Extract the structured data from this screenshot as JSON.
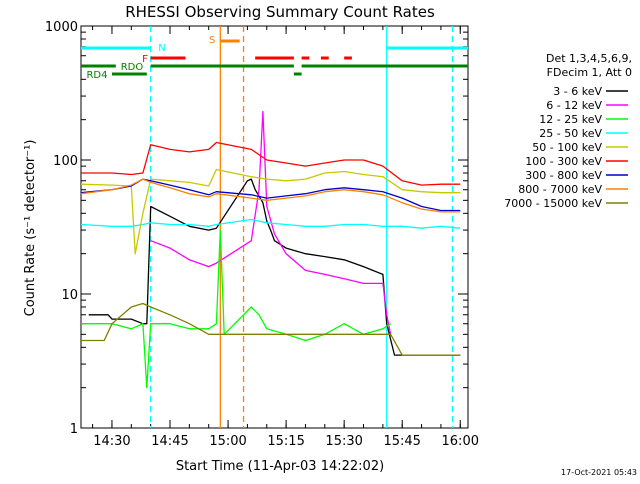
{
  "chart_data": {
    "type": "line",
    "title": "RHESSI Observing Summary Count Rates",
    "xlabel": "Start Time (11-Apr-03 14:22:02)",
    "ylabel": "Count Rate (s⁻¹ detector⁻¹)",
    "y_scale": "log",
    "ylim": [
      1,
      1000
    ],
    "xlim": [
      "14:22",
      "16:02"
    ],
    "x_ticks": [
      "14:30",
      "14:45",
      "15:00",
      "15:15",
      "15:30",
      "15:45",
      "16:00"
    ],
    "y_ticks": [
      "1",
      "10",
      "100",
      "1000"
    ],
    "grid": false,
    "legend_position": "right",
    "legend_header": [
      "Det 1,3,4,5,6,9,",
      "FDecim 1, Att 0"
    ],
    "footer_date": "17-Oct-2021 05:43",
    "series": [
      {
        "name": "3 - 6 keV",
        "color": "#000000",
        "x": [
          "14:24",
          "14:29",
          "14:30",
          "14:35",
          "14:38",
          "14:39",
          "14:40",
          "14:45",
          "14:50",
          "14:55",
          "14:57",
          "15:05",
          "15:06",
          "15:07",
          "15:09",
          "15:10",
          "15:11",
          "15:12",
          "15:15",
          "15:20",
          "15:25",
          "15:30",
          "15:35",
          "15:40",
          "15:41",
          "15:43",
          "15:45",
          "15:50",
          "15:55",
          "16:00"
        ],
        "y": [
          7,
          7,
          6.5,
          6.5,
          6,
          6,
          45,
          38,
          32,
          30,
          31,
          70,
          72,
          60,
          48,
          35,
          30,
          25,
          22,
          20,
          19,
          18,
          16,
          14,
          6,
          3.5,
          3.5,
          3.5,
          3.5,
          3.5
        ]
      },
      {
        "name": "6 - 12 keV",
        "color": "#ff00ff",
        "x": [
          "14:40",
          "14:45",
          "14:50",
          "14:55",
          "14:57",
          "15:06",
          "15:08",
          "15:09",
          "15:10",
          "15:12",
          "15:15",
          "15:20",
          "15:25",
          "15:30",
          "15:35",
          "15:40",
          "15:41",
          "15:42"
        ],
        "y": [
          25,
          22,
          18,
          16,
          17,
          25,
          60,
          230,
          45,
          28,
          20,
          15,
          14,
          13,
          12,
          12,
          7,
          5
        ]
      },
      {
        "name": "12 - 25 keV",
        "color": "#00ff00",
        "x": [
          "14:22",
          "14:30",
          "14:35",
          "14:38",
          "14:39",
          "14:40",
          "14:45",
          "14:50",
          "14:55",
          "14:57",
          "14:58",
          "14:59",
          "15:06",
          "15:08",
          "15:10",
          "15:15",
          "15:20",
          "15:25",
          "15:30",
          "15:35",
          "15:40",
          "15:42"
        ],
        "y": [
          6,
          6,
          5.5,
          6,
          2,
          6,
          6,
          5.5,
          5.5,
          6,
          30,
          5,
          8,
          7,
          5.5,
          5,
          4.5,
          5,
          6,
          5,
          5.5,
          6
        ]
      },
      {
        "name": "25 - 50 keV",
        "color": "#00ffff",
        "x": [
          "14:22",
          "14:30",
          "14:35",
          "14:38",
          "14:40",
          "14:45",
          "14:50",
          "14:55",
          "14:57",
          "15:06",
          "15:10",
          "15:15",
          "15:20",
          "15:25",
          "15:30",
          "15:35",
          "15:40",
          "15:45",
          "15:50",
          "15:55",
          "16:00"
        ],
        "y": [
          33,
          32,
          32,
          33,
          34,
          33,
          33,
          32,
          33,
          36,
          34,
          33,
          32,
          32,
          33,
          33,
          32,
          32,
          31,
          32,
          31
        ]
      },
      {
        "name": "50 - 100 keV",
        "color": "#c8c800",
        "x": [
          "14:22",
          "14:30",
          "14:35",
          "14:36",
          "14:38",
          "14:40",
          "14:45",
          "14:50",
          "14:55",
          "14:57",
          "15:06",
          "15:10",
          "15:15",
          "15:20",
          "15:25",
          "15:30",
          "15:35",
          "15:40",
          "15:45",
          "15:50",
          "15:55",
          "16:00"
        ],
        "y": [
          66,
          65,
          64,
          20,
          40,
          72,
          70,
          68,
          64,
          85,
          75,
          72,
          70,
          72,
          80,
          82,
          78,
          75,
          60,
          58,
          57,
          57
        ]
      },
      {
        "name": "100 - 300 keV",
        "color": "#ff0000",
        "x": [
          "14:22",
          "14:30",
          "14:35",
          "14:38",
          "14:40",
          "14:45",
          "14:50",
          "14:55",
          "14:57",
          "15:06",
          "15:10",
          "15:15",
          "15:20",
          "15:25",
          "15:30",
          "15:35",
          "15:40",
          "15:45",
          "15:50",
          "15:55",
          "16:00"
        ],
        "y": [
          80,
          80,
          78,
          80,
          130,
          120,
          115,
          120,
          135,
          120,
          100,
          95,
          90,
          95,
          100,
          100,
          90,
          70,
          65,
          66,
          66
        ]
      },
      {
        "name": "300 - 800 keV",
        "color": "#0000cc",
        "x": [
          "14:22",
          "14:30",
          "14:35",
          "14:38",
          "14:40",
          "14:45",
          "14:50",
          "14:55",
          "14:57",
          "15:06",
          "15:10",
          "15:15",
          "15:20",
          "15:25",
          "15:30",
          "15:35",
          "15:40",
          "15:45",
          "15:50",
          "15:55",
          "16:00"
        ],
        "y": [
          57,
          60,
          64,
          72,
          70,
          65,
          60,
          55,
          58,
          55,
          52,
          54,
          56,
          60,
          62,
          60,
          58,
          52,
          45,
          42,
          42
        ]
      },
      {
        "name": "800 - 7000 keV",
        "color": "#ff8000",
        "x": [
          "14:22",
          "14:30",
          "14:35",
          "14:38",
          "14:40",
          "14:45",
          "14:50",
          "14:55",
          "14:57",
          "15:06",
          "15:10",
          "15:15",
          "15:20",
          "15:25",
          "15:30",
          "15:35",
          "15:40",
          "15:45",
          "15:50",
          "15:55",
          "16:00"
        ],
        "y": [
          56,
          60,
          65,
          72,
          68,
          62,
          56,
          53,
          56,
          52,
          50,
          52,
          54,
          58,
          60,
          58,
          55,
          48,
          43,
          41,
          41
        ]
      },
      {
        "name": "7000 - 15000 keV",
        "color": "#808000",
        "x": [
          "14:22",
          "14:28",
          "14:30",
          "14:35",
          "14:38",
          "14:40",
          "14:45",
          "14:50",
          "14:55",
          "14:57",
          "15:06",
          "15:10",
          "15:15",
          "15:20",
          "15:25",
          "15:30",
          "15:35",
          "15:40",
          "15:42",
          "15:45",
          "15:50",
          "15:55",
          "16:00"
        ],
        "y": [
          4.5,
          4.5,
          6,
          8,
          8.5,
          8,
          7,
          6,
          5,
          5,
          5,
          5,
          5,
          5,
          5,
          5,
          5,
          5,
          5,
          3.5,
          3.5,
          3.5,
          3.5
        ]
      }
    ],
    "flag_lines": [
      {
        "label": "N",
        "color": "#00ffff",
        "segments": [
          [
            "14:22",
            "14:40"
          ],
          [
            "15:41",
            "16:02"
          ]
        ]
      },
      {
        "label": "F",
        "color": "#ff0000",
        "segments": [
          [
            "14:40",
            "14:49"
          ],
          [
            "15:07",
            "15:17"
          ],
          [
            "15:19",
            "15:21"
          ],
          [
            "15:24",
            "15:26"
          ],
          [
            "15:30",
            "15:32"
          ]
        ]
      },
      {
        "label": "S",
        "color": "#ff8000",
        "segments": [
          [
            "14:58",
            "15:03"
          ]
        ]
      },
      {
        "label": "RDO",
        "color": "#008000",
        "segments": [
          [
            "14:22",
            "14:31"
          ],
          [
            "14:40",
            "15:17"
          ],
          [
            "15:19",
            "16:02"
          ]
        ]
      },
      {
        "label": "RD4",
        "color": "#008000",
        "segments": [
          [
            "14:30",
            "14:39"
          ],
          [
            "15:17",
            "15:19"
          ]
        ]
      }
    ],
    "vertical_markers": [
      {
        "x": "14:40",
        "color": "#00ffff",
        "style": "dashed"
      },
      {
        "x": "14:58",
        "color": "#ff8000",
        "style": "solid"
      },
      {
        "x": "15:04",
        "color": "#ff8000",
        "style": "dashed"
      },
      {
        "x": "15:41",
        "color": "#00ffff",
        "style": "solid"
      },
      {
        "x": "15:58",
        "color": "#00ffff",
        "style": "dashed"
      }
    ]
  }
}
